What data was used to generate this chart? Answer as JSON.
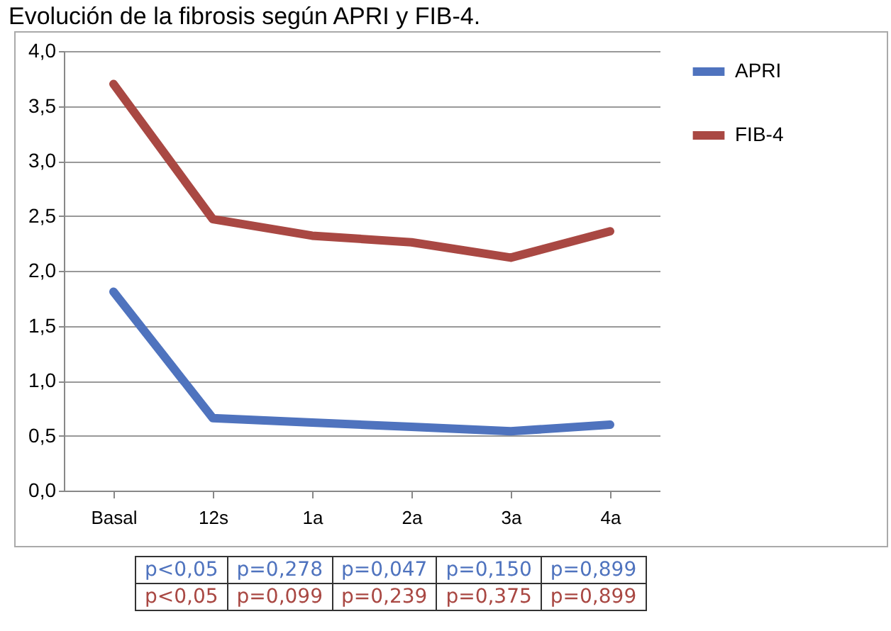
{
  "chart_data": {
    "type": "line",
    "title": "Evolución de la fibrosis según APRI y FIB-4.",
    "categories": [
      "Basal",
      "12s",
      "1a",
      "2a",
      "3a",
      "4a"
    ],
    "series": [
      {
        "name": "APRI",
        "color": "#4f73be",
        "values": [
          1.81,
          0.66,
          0.62,
          0.58,
          0.54,
          0.6
        ]
      },
      {
        "name": "FIB-4",
        "color": "#a94843",
        "values": [
          3.7,
          2.47,
          2.32,
          2.26,
          2.12,
          2.36
        ]
      }
    ],
    "ylim": [
      0,
      4
    ],
    "yticks": [
      {
        "value": 0,
        "label": "0,0"
      },
      {
        "value": 0.5,
        "label": "0,5"
      },
      {
        "value": 1,
        "label": "1,0"
      },
      {
        "value": 1.5,
        "label": "1,5"
      },
      {
        "value": 2,
        "label": "2,0"
      },
      {
        "value": 2.5,
        "label": "2,5"
      },
      {
        "value": 3,
        "label": "3,0"
      },
      {
        "value": 3.5,
        "label": "3,5"
      },
      {
        "value": 4,
        "label": "4,0"
      }
    ],
    "grid": "y",
    "legend": "right",
    "marker": "none",
    "line_style": "solid",
    "annotations": [
      "p<0,05",
      "p=0,278",
      "p=0,047",
      "p=0,150",
      "p=0,899",
      "p<0,05",
      "p=0,099",
      "p=0,239",
      "p=0,375",
      "p=0,899"
    ]
  }
}
